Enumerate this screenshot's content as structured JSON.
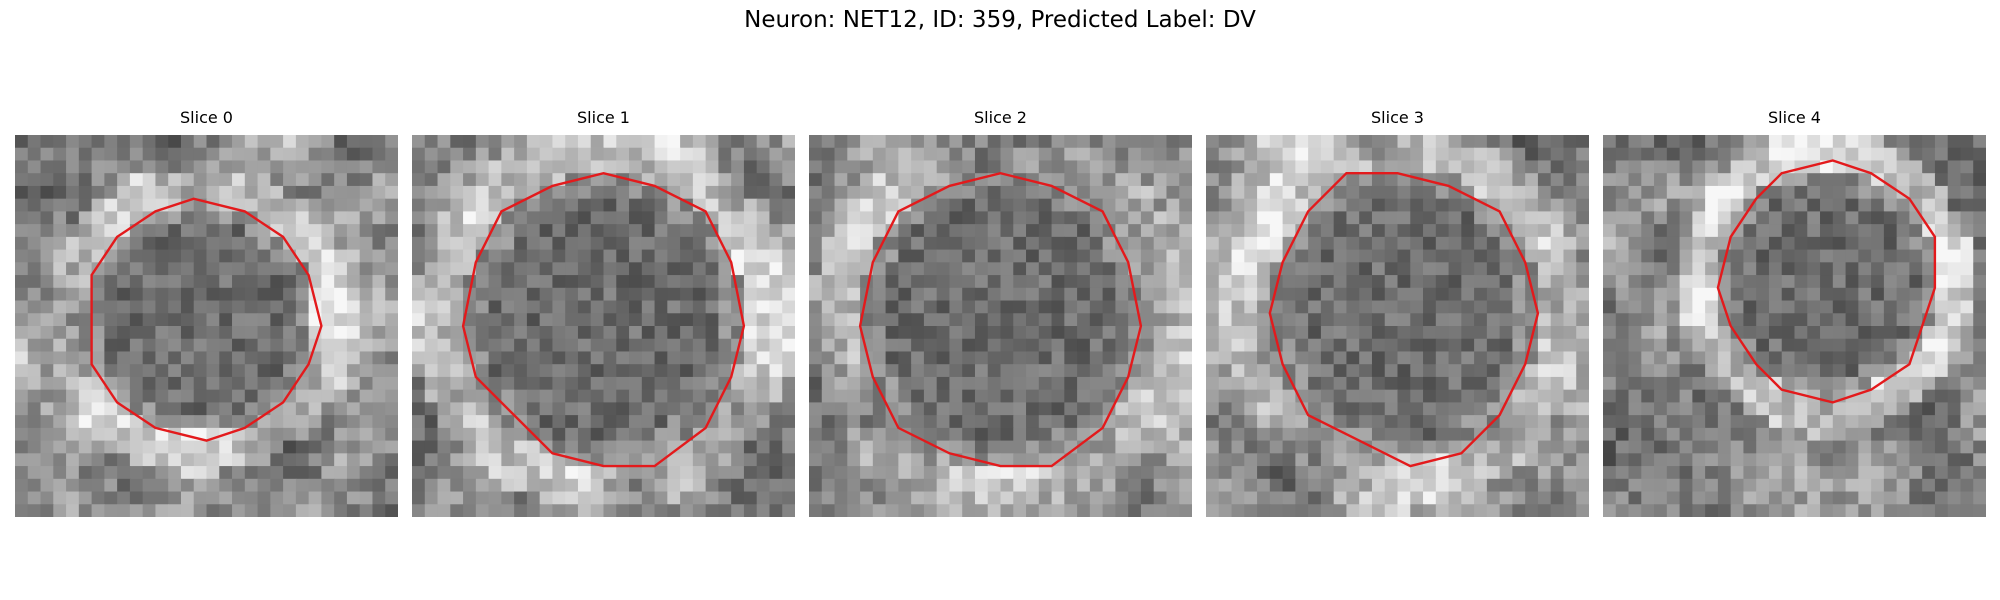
{
  "title": "Neuron: NET12, ID: 359, Predicted Label: DV",
  "contour_color": "#e31a1c",
  "panels": [
    {
      "title": "Slice 0"
    },
    {
      "title": "Slice 1"
    },
    {
      "title": "Slice 2"
    },
    {
      "title": "Slice 3"
    },
    {
      "title": "Slice 4"
    }
  ]
}
